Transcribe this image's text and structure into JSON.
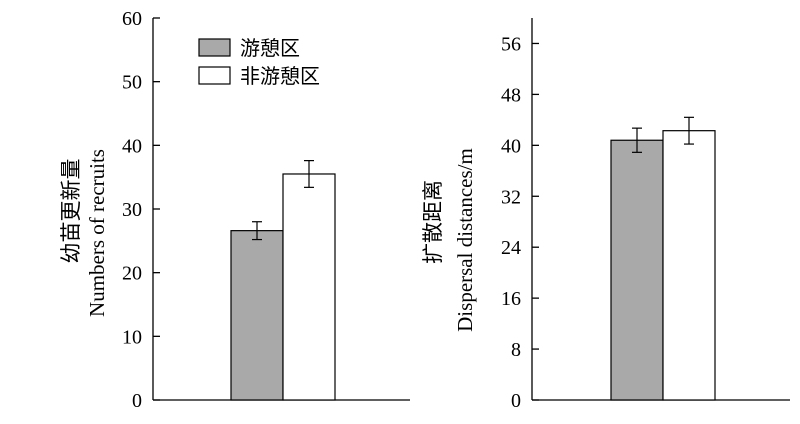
{
  "chart_data": [
    {
      "type": "bar",
      "ylabel_cn": "幼苗更新量",
      "ylabel_en": "Numbers of recruits",
      "ylim": [
        0,
        60
      ],
      "yticks": [
        0,
        10,
        20,
        30,
        40,
        50,
        60
      ],
      "legend": "top-left",
      "grid": false,
      "series": [
        {
          "name": "游憩区",
          "value": 26.6,
          "error": 1.4,
          "color": "#a9a9a9"
        },
        {
          "name": "非游憩区",
          "value": 35.5,
          "error": 2.1,
          "color": "#ffffff"
        }
      ]
    },
    {
      "type": "bar",
      "ylabel_cn": "扩散距离",
      "ylabel_en": "Dispersal distances/m",
      "ylim": [
        0,
        60
      ],
      "yticks": [
        0,
        8,
        16,
        24,
        32,
        40,
        48,
        56
      ],
      "legend": "none",
      "grid": false,
      "series": [
        {
          "name": "游憩区",
          "value": 40.8,
          "error": 1.9,
          "color": "#a9a9a9"
        },
        {
          "name": "非游憩区",
          "value": 42.3,
          "error": 2.1,
          "color": "#ffffff"
        }
      ]
    }
  ]
}
